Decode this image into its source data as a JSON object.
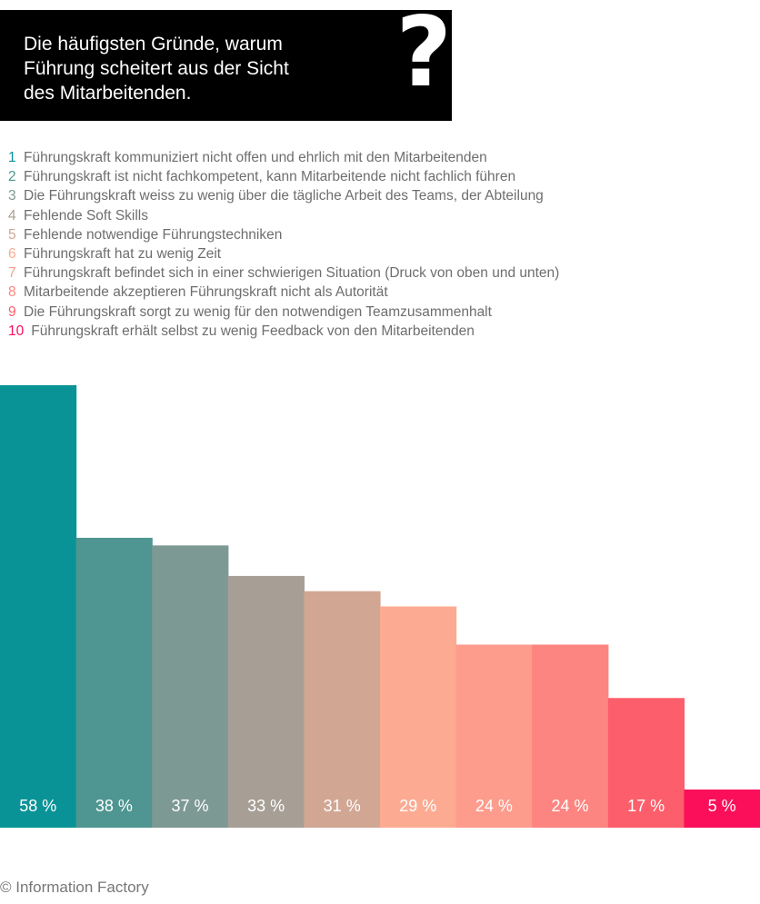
{
  "title": {
    "text": "Die häufigsten Gründe, warum\nFührung scheitert aus der Sicht\ndes Mitarbeitenden.",
    "mark": "?"
  },
  "legend": [
    {
      "number": "1",
      "text": "Führungskraft kommuniziert nicht offen und ehrlich mit den Mitarbeitenden",
      "color": "#0a9396"
    },
    {
      "number": "2",
      "text": "Führungskraft ist nicht fachkompetent, kann Mitarbeitende nicht fachlich führen",
      "color": "#4f9591"
    },
    {
      "number": "3",
      "text": "Die Führungskraft weiss zu wenig über die tägliche Arbeit des Teams, der Abteilung",
      "color": "#7d9994"
    },
    {
      "number": "4",
      "text": "Fehlende Soft Skills",
      "color": "#a79f96"
    },
    {
      "number": "5",
      "text": "Fehlende notwendige Führungstechniken",
      "color": "#d1a794"
    },
    {
      "number": "6",
      "text": "Führungskraft hat zu wenig Zeit",
      "color": "#fcab92"
    },
    {
      "number": "7",
      "text": "Führungskraft befindet sich in einer schwierigen Situation (Druck von oben und unten)",
      "color": "#fd9c8d"
    },
    {
      "number": "8",
      "text": "Mitarbeitende akzeptieren Führungskraft nicht als Autorität",
      "color": "#fd8581"
    },
    {
      "number": "9",
      "text": "Die Führungskraft sorgt zu wenig für den notwendigen Teamzusammenhalt",
      "color": "#fc5f6b"
    },
    {
      "number": "10",
      "text": "Führungskraft erhält selbst zu wenig Feedback von den Mitarbeitenden",
      "color": "#fb0f5a"
    }
  ],
  "chart_data": {
    "type": "bar",
    "categories": [
      "1",
      "2",
      "3",
      "4",
      "5",
      "6",
      "7",
      "8",
      "9",
      "10"
    ],
    "values": [
      58,
      38,
      37,
      33,
      31,
      29,
      24,
      24,
      17,
      5
    ],
    "value_labels": [
      "58 %",
      "38 %",
      "37 %",
      "33 %",
      "31 %",
      "29 %",
      "24 %",
      "24 %",
      "17 %",
      "5 %"
    ],
    "colors": [
      "#0a9396",
      "#4f9591",
      "#7d9994",
      "#a79f96",
      "#d1a794",
      "#fcab92",
      "#fd9c8d",
      "#fd8581",
      "#fc5f6b",
      "#fb0f5a"
    ],
    "ylim": [
      0,
      58
    ],
    "grid": false,
    "xlabel": "",
    "ylabel": ""
  },
  "footer": "© Information Factory"
}
